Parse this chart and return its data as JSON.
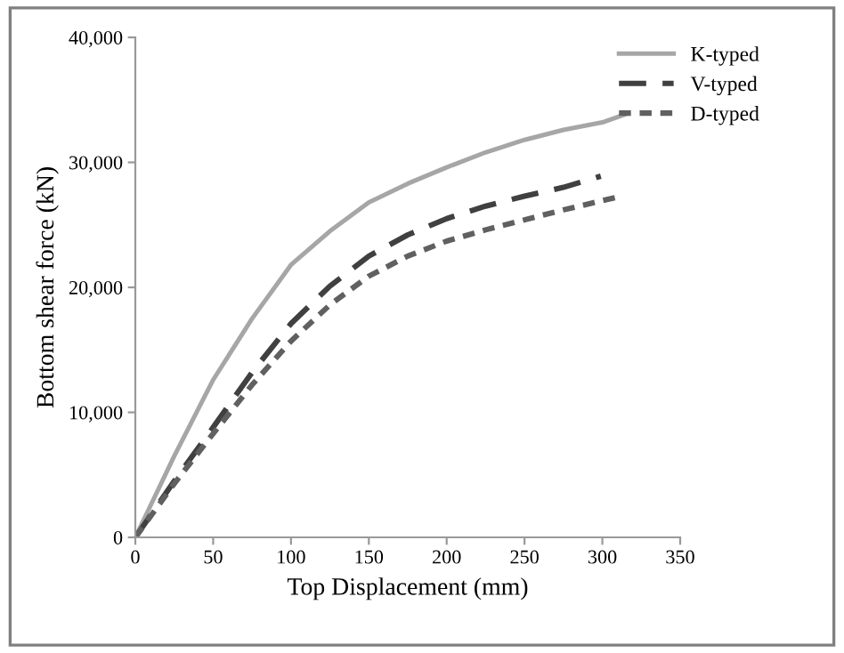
{
  "chart_data": {
    "type": "line",
    "xlabel": "Top Displacement (mm)",
    "ylabel": "Bottom shear force (kN)",
    "xlim": [
      0,
      350
    ],
    "xticks": [
      0,
      50,
      100,
      150,
      200,
      250,
      300,
      350
    ],
    "ylim": [
      0,
      40000
    ],
    "yticks": [
      {
        "value": 0,
        "label": "0"
      },
      {
        "value": 10000,
        "label": "10,000"
      },
      {
        "value": 20000,
        "label": "20,000"
      },
      {
        "value": 30000,
        "label": "30,000"
      },
      {
        "value": 40000,
        "label": "40,000"
      }
    ],
    "grid": false,
    "legend": "top right",
    "marker": "none",
    "series": [
      {
        "name": "K-typed",
        "color": "#a6a6a6",
        "line_style": "solid",
        "x": [
          0,
          25,
          50,
          75,
          100,
          125,
          150,
          175,
          200,
          225,
          250,
          275,
          300,
          316
        ],
        "values": [
          0,
          6500,
          12600,
          17500,
          21800,
          24500,
          26800,
          28300,
          29600,
          30800,
          31800,
          32600,
          33200,
          33900
        ]
      },
      {
        "name": "V-typed",
        "color": "#404040",
        "line_style": "dashed",
        "x": [
          0,
          25,
          50,
          75,
          100,
          125,
          150,
          175,
          200,
          225,
          250,
          275,
          299
        ],
        "values": [
          0,
          4500,
          8800,
          13200,
          17100,
          20100,
          22500,
          24200,
          25500,
          26500,
          27300,
          28000,
          28900
        ]
      },
      {
        "name": "D-typed",
        "color": "#606060",
        "line_style": "dotted",
        "x": [
          0,
          25,
          50,
          75,
          100,
          125,
          150,
          175,
          200,
          225,
          250,
          275,
          309
        ],
        "values": [
          0,
          4300,
          8300,
          12200,
          15700,
          18600,
          20900,
          22500,
          23700,
          24600,
          25400,
          26200,
          27200
        ]
      }
    ]
  }
}
